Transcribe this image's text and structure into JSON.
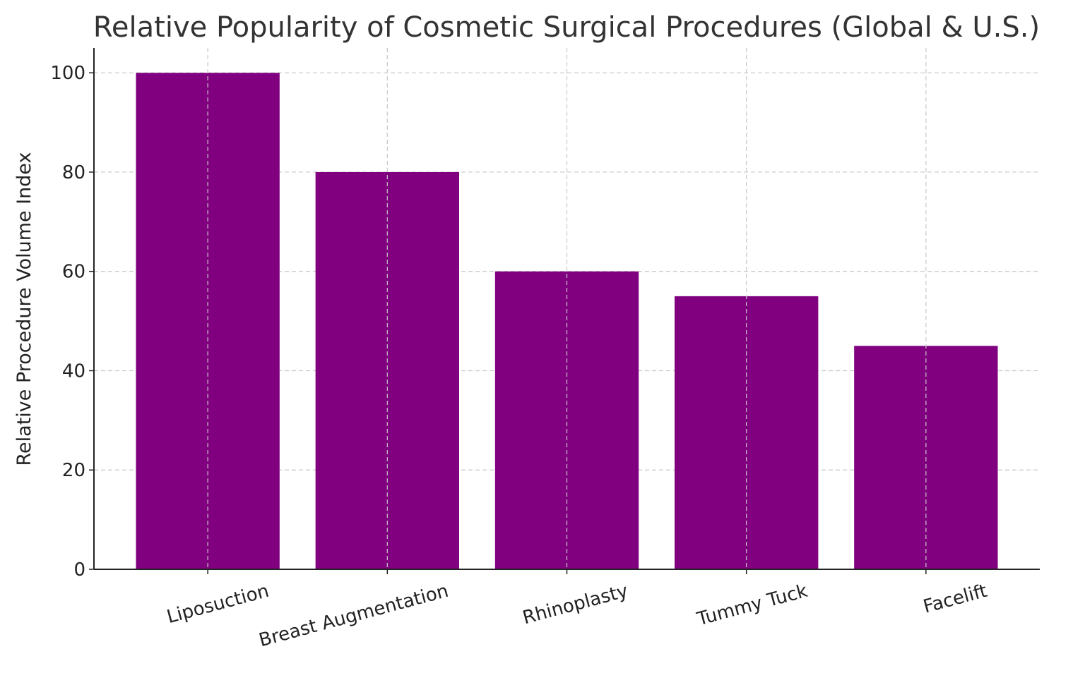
{
  "chart_data": {
    "type": "bar",
    "title": "Relative Popularity of Cosmetic Surgical Procedures (Global & U.S.)",
    "xlabel": "",
    "ylabel": "Relative Procedure Volume Index",
    "categories": [
      "Liposuction",
      "Breast Augmentation",
      "Rhinoplasty",
      "Tummy Tuck",
      "Facelift"
    ],
    "values": [
      100,
      80,
      60,
      55,
      45
    ],
    "ylim": [
      0,
      105
    ],
    "yticks": [
      0,
      20,
      40,
      60,
      80,
      100
    ],
    "ytick_labels": [
      "0",
      "20",
      "40",
      "60",
      "80",
      "100"
    ],
    "xtick_rotation_deg": 15,
    "grid": true,
    "bar_color": "#800080"
  }
}
